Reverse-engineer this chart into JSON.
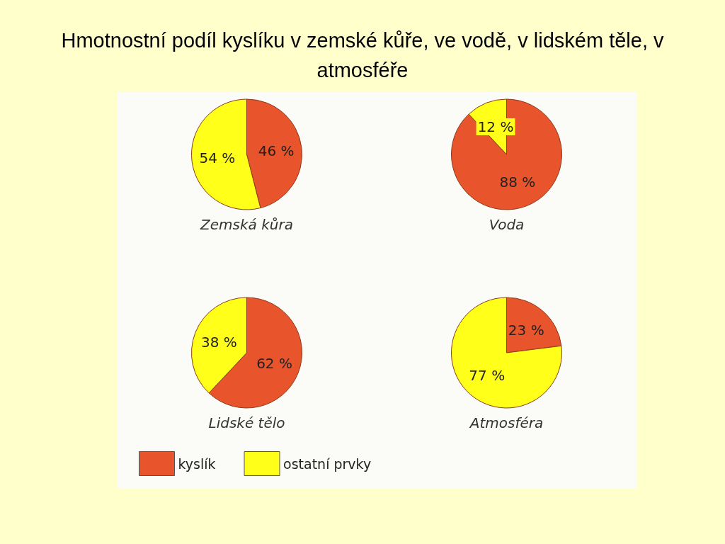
{
  "chart_data": [
    {
      "type": "pie",
      "title": "Hmotnostní podíl kyslíku v zemské kůře, ve vodě, v lidském těle, v atmosféře",
      "xlabel": "Zemská kůra",
      "categories": [
        null,
        null
      ],
      "values": [
        46,
        54
      ],
      "colors": [
        "#e8542c",
        "#ffff1a"
      ],
      "value_labels": [
        "46 %",
        "54 %"
      ],
      "legend": false
    },
    {
      "type": "pie",
      "xlabel": "Voda",
      "categories": [
        null,
        null
      ],
      "values": [
        88,
        12
      ],
      "colors": [
        "#e8542c",
        "#ffff1a"
      ],
      "value_labels": [
        "88 %",
        "12 %"
      ],
      "legend": false
    },
    {
      "type": "pie",
      "xlabel": "Lidské tělo",
      "categories": [
        "kyslík",
        "ostatní prvky"
      ],
      "values": [
        62,
        38
      ],
      "colors": [
        "#e8542c",
        "#ffff1a"
      ],
      "value_labels": [
        "62 %",
        "38 %"
      ],
      "legend": "bottom"
    },
    {
      "type": "pie",
      "xlabel": "Atmosféra",
      "categories": [
        null,
        null
      ],
      "values": [
        23,
        77
      ],
      "colors": [
        "#e8542c",
        "#ffff1a"
      ],
      "value_labels": [
        "23 %",
        "77 %"
      ],
      "legend": false
    }
  ]
}
